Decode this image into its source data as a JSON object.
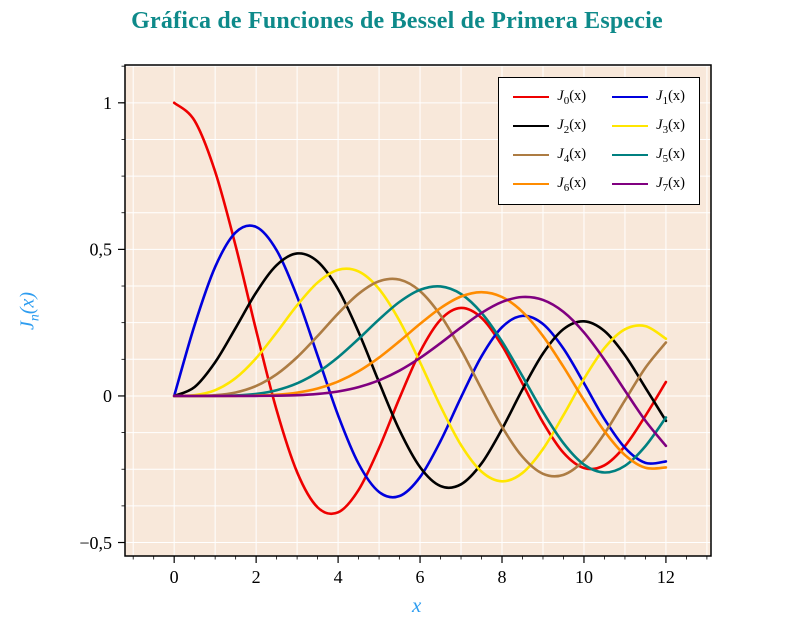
{
  "title": {
    "text": "Gráfica de Funciones de Bessel de Primera Especie",
    "color": "#0e8a8a"
  },
  "chart_data": {
    "type": "line",
    "title": "Gráfica de Funciones de Bessel de Primera Especie",
    "xlabel": "x",
    "ylabel": "J_n(x)",
    "ylabel_parts": {
      "base": "J",
      "sub": "n",
      "rest": "(x)"
    },
    "axis_label_color": "#2e9df0",
    "plot_background": "#f8e8da",
    "grid": true,
    "grid_color": "#ffffff",
    "frame_color": "#000000",
    "xlim": [
      -1.2,
      13.1
    ],
    "ylim": [
      -0.546,
      1.129
    ],
    "x_major_ticks": [
      0,
      2,
      4,
      6,
      8,
      10,
      12
    ],
    "x_tick_labels": [
      "0",
      "2",
      "4",
      "6",
      "8",
      "10",
      "12"
    ],
    "y_major_ticks": [
      -0.5,
      0,
      0.5,
      1
    ],
    "y_tick_labels": [
      "−0,5",
      "0",
      "0,5",
      "1"
    ],
    "x_minor_step": 0.5,
    "y_minor_step": 0.125,
    "x_grid_step": 1.0,
    "y_grid_step": 0.125,
    "legend_position": "top-right",
    "x": [
      0,
      0.5,
      1,
      1.5,
      2,
      2.5,
      3,
      3.5,
      4,
      4.5,
      5,
      5.5,
      6,
      6.5,
      7,
      7.5,
      8,
      8.5,
      9,
      9.5,
      10,
      10.5,
      11,
      11.5,
      12
    ],
    "series": [
      {
        "order": 0,
        "label": "J_0(x)",
        "color": "#ee0000",
        "values": [
          1.0,
          0.9385,
          0.7652,
          0.5118,
          0.2239,
          -0.0484,
          -0.2601,
          -0.3801,
          -0.3971,
          -0.3205,
          -0.1776,
          -0.0068,
          0.1506,
          0.2601,
          0.3001,
          0.2663,
          0.1717,
          0.0419,
          -0.0903,
          -0.1939,
          -0.2459,
          -0.2366,
          -0.1712,
          -0.0677,
          0.0477
        ]
      },
      {
        "order": 1,
        "label": "J_1(x)",
        "color": "#0000dd",
        "values": [
          0,
          0.2423,
          0.4401,
          0.5579,
          0.5767,
          0.4971,
          0.3391,
          0.1374,
          -0.066,
          -0.2311,
          -0.3276,
          -0.3414,
          -0.2767,
          -0.1538,
          -0.0047,
          0.1352,
          0.2346,
          0.2731,
          0.2453,
          0.1613,
          0.0435,
          -0.0789,
          -0.1768,
          -0.2284,
          -0.2234
        ]
      },
      {
        "order": 2,
        "label": "J_2(x)",
        "color": "#000000",
        "values": [
          0,
          0.0306,
          0.1149,
          0.2321,
          0.3528,
          0.4461,
          0.4861,
          0.4586,
          0.3641,
          0.2178,
          0.0466,
          -0.1173,
          -0.2429,
          -0.3074,
          -0.3014,
          -0.2303,
          -0.113,
          0.0223,
          0.1448,
          0.2279,
          0.2546,
          0.2216,
          0.139,
          0.0279,
          -0.0849
        ]
      },
      {
        "order": 3,
        "label": "J_3(x)",
        "color": "#ffe600",
        "values": [
          0,
          0.0026,
          0.0196,
          0.061,
          0.1289,
          0.2166,
          0.3091,
          0.3868,
          0.4302,
          0.4247,
          0.3648,
          0.2561,
          0.1148,
          -0.0353,
          -0.1676,
          -0.2581,
          -0.2911,
          -0.2626,
          -0.1809,
          -0.0653,
          0.0584,
          0.1633,
          0.2273,
          0.2381,
          0.1951
        ]
      },
      {
        "order": 4,
        "label": "J_4(x)",
        "color": "#ad7c43",
        "values": [
          0,
          0.0002,
          0.0025,
          0.0118,
          0.034,
          0.0738,
          0.132,
          0.2044,
          0.2811,
          0.3484,
          0.3912,
          0.3967,
          0.3576,
          0.2748,
          0.1578,
          0.0238,
          -0.1054,
          -0.2077,
          -0.2655,
          -0.2691,
          -0.2196,
          -0.1283,
          -0.015,
          0.0963,
          0.1825
        ]
      },
      {
        "order": 5,
        "label": "J_5(x)",
        "color": "#008080",
        "values": [
          0,
          0.0,
          0.0002,
          0.0018,
          0.007,
          0.0195,
          0.043,
          0.0804,
          0.1321,
          0.1947,
          0.2611,
          0.3209,
          0.3621,
          0.3736,
          0.3479,
          0.2835,
          0.1858,
          0.0671,
          -0.055,
          -0.1613,
          -0.2341,
          -0.2611,
          -0.2383,
          -0.1711,
          -0.0735
        ]
      },
      {
        "order": 6,
        "label": "J_6(x)",
        "color": "#ff8c00",
        "values": [
          0,
          0.0,
          0.0,
          0.0002,
          0.0012,
          0.0042,
          0.0114,
          0.0254,
          0.0491,
          0.0843,
          0.131,
          0.1868,
          0.2458,
          0.2999,
          0.3392,
          0.3541,
          0.3376,
          0.2867,
          0.2043,
          0.0993,
          -0.0145,
          -0.1203,
          -0.2016,
          -0.2451,
          -0.2437
        ]
      },
      {
        "order": 7,
        "label": "J_7(x)",
        "color": "#800080",
        "values": [
          0,
          0.0,
          0.0,
          0.0,
          0.0002,
          0.0008,
          0.0025,
          0.0067,
          0.0152,
          0.03,
          0.0534,
          0.0866,
          0.1296,
          0.1801,
          0.2336,
          0.2832,
          0.3206,
          0.3376,
          0.3275,
          0.2868,
          0.2167,
          0.1237,
          0.0184,
          -0.0846,
          -0.1703
        ]
      }
    ]
  }
}
